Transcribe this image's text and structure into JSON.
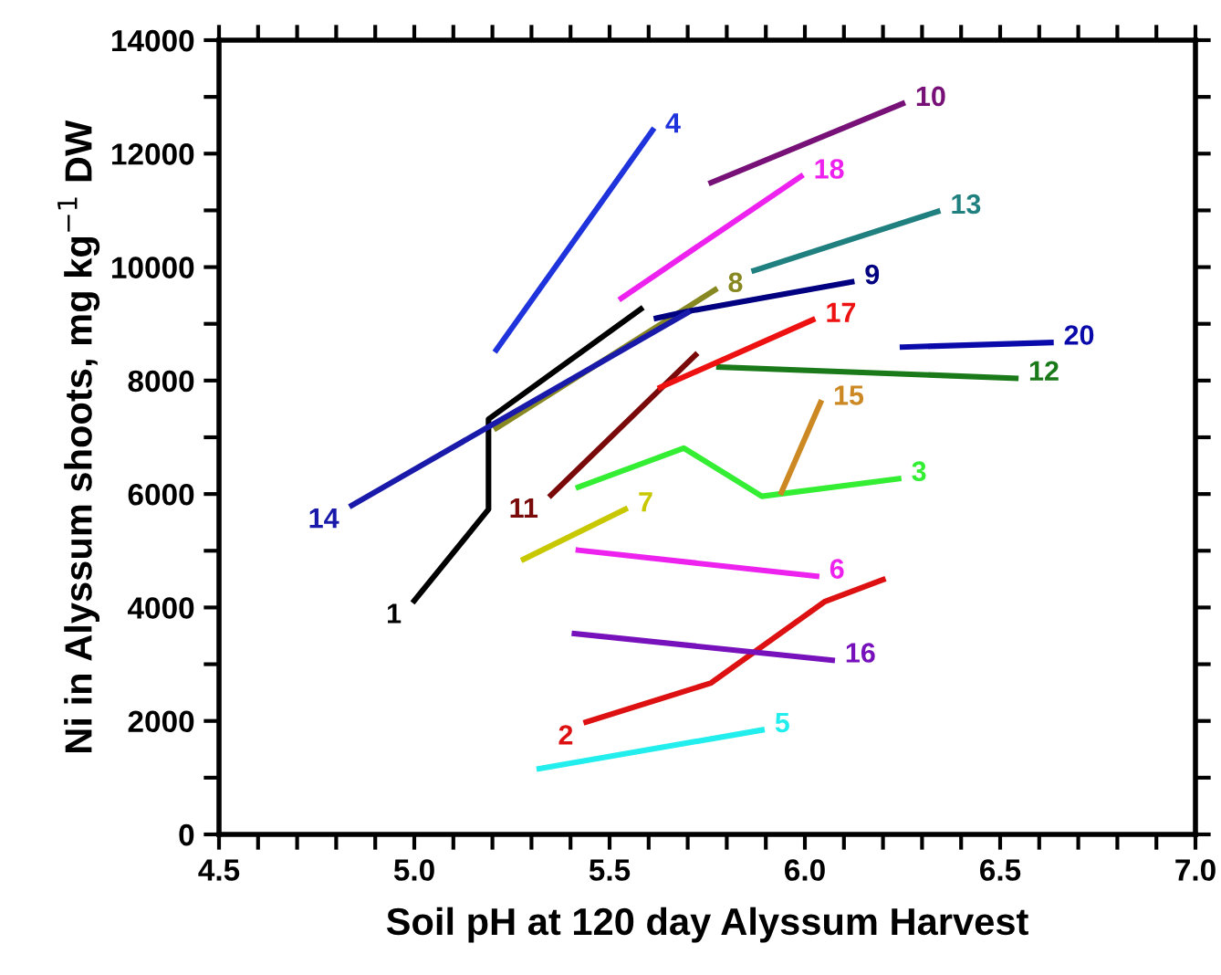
{
  "chart_data": {
    "type": "line",
    "xlabel": "Soil pH at 120 day Alyssum Harvest",
    "ylabel": "Ni in Alyssum shoots, mg kg$^{−1}$ DW",
    "xlim": [
      4.5,
      7.0
    ],
    "ylim": [
      0,
      14000
    ],
    "xticks": [
      4.5,
      {
        "value": 4.6,
        "label": null
      },
      {
        "value": 4.7,
        "label": null
      },
      {
        "value": 4.8,
        "label": null
      },
      {
        "value": 4.9,
        "label": null
      },
      "5.0",
      {
        "value": 5.1,
        "label": null
      },
      {
        "value": 5.2,
        "label": null
      },
      {
        "value": 5.3,
        "label": null
      },
      {
        "value": 5.4,
        "label": null
      },
      5.5,
      {
        "value": 5.6,
        "label": null
      },
      {
        "value": 5.7,
        "label": null
      },
      {
        "value": 5.8,
        "label": null
      },
      {
        "value": 5.9,
        "label": null
      },
      {
        "value": 6.0,
        "label": "6.0"
      },
      {
        "value": 6.1,
        "label": null
      },
      {
        "value": 6.2,
        "label": null
      },
      {
        "value": 6.3,
        "label": null
      },
      {
        "value": 6.4,
        "label": null
      },
      6.5,
      {
        "value": 6.6,
        "label": null
      },
      {
        "value": 6.7,
        "label": null
      },
      {
        "value": 6.8,
        "label": null
      },
      {
        "value": 6.9,
        "label": null
      },
      {
        "value": 7.0,
        "label": "7.0"
      }
    ],
    "yticks": [
      0,
      {
        "value": 1000,
        "label": null
      },
      2000,
      {
        "value": 3000,
        "label": null
      },
      4000,
      {
        "value": 5000,
        "label": null
      },
      6000,
      {
        "value": 7000,
        "label": null
      },
      8000,
      {
        "value": 9000,
        "label": null
      },
      10000,
      {
        "value": 11000,
        "label": null
      },
      12000,
      {
        "value": 13000,
        "label": null
      },
      14000
    ],
    "grid": false,
    "legend": false,
    "marker": "none",
    "line_style": "solid",
    "series": [
      {
        "name": "1",
        "color": "#000000",
        "x": [
          5.0,
          5.19,
          5.19,
          5.58
        ],
        "values": [
          4120,
          5730,
          7320,
          9260
        ]
      },
      {
        "name": "2",
        "color": "#dd1111",
        "x": [
          5.44,
          5.76,
          6.05,
          6.2
        ],
        "values": [
          1980,
          2670,
          4100,
          4490
        ]
      },
      {
        "name": "3",
        "color": "#33ee33",
        "x": [
          5.42,
          5.69,
          5.89,
          6.24
        ],
        "values": [
          6120,
          6810,
          5960,
          6270
        ]
      },
      {
        "name": "4",
        "color": "#1f33dd",
        "x": [
          5.21,
          5.61
        ],
        "values": [
          8540,
          12410
        ]
      },
      {
        "name": "5",
        "color": "#22eeee",
        "x": [
          5.32,
          5.89
        ],
        "values": [
          1160,
          1840
        ]
      },
      {
        "name": "6",
        "color": "#ee22ee",
        "x": [
          5.42,
          6.03
        ],
        "values": [
          5010,
          4550
        ]
      },
      {
        "name": "7",
        "color": "#c8c800",
        "x": [
          5.28,
          5.54
        ],
        "values": [
          4850,
          5730
        ]
      },
      {
        "name": "8",
        "color": "#888822",
        "x": [
          5.21,
          5.77
        ],
        "values": [
          7160,
          9600
        ]
      },
      {
        "name": "9",
        "color": "#000080",
        "x": [
          5.62,
          5.7,
          6.12
        ],
        "values": [
          9100,
          9220,
          9740
        ]
      },
      {
        "name": "10",
        "color": "#771177",
        "x": [
          5.76,
          6.25
        ],
        "values": [
          11490,
          12880
        ]
      },
      {
        "name": "11",
        "color": "#7a0a0a",
        "x": [
          5.35,
          5.72
        ],
        "values": [
          5980,
          8450
        ]
      },
      {
        "name": "12",
        "color": "#1a7a1a",
        "x": [
          5.78,
          6.54
        ],
        "values": [
          8240,
          8040
        ]
      },
      {
        "name": "13",
        "color": "#208080",
        "x": [
          5.87,
          6.34
        ],
        "values": [
          9940,
          10980
        ]
      },
      {
        "name": "14",
        "color": "#1a1aaa",
        "x": [
          4.84,
          5.7
        ],
        "values": [
          5800,
          9200
        ]
      },
      {
        "name": "15",
        "color": "#cc8822",
        "x": [
          5.94,
          6.04
        ],
        "values": [
          6030,
          7610
        ]
      },
      {
        "name": "16",
        "color": "#7711bb",
        "x": [
          5.41,
          6.07
        ],
        "values": [
          3540,
          3070
        ]
      },
      {
        "name": "17",
        "color": "#ee1111",
        "x": [
          5.63,
          6.02
        ],
        "values": [
          7880,
          9070
        ]
      },
      {
        "name": "18",
        "color": "#ee22ee",
        "x": [
          5.53,
          5.99
        ],
        "values": [
          9450,
          11600
        ]
      },
      {
        "name": "20",
        "color": "#0a0aaa",
        "x": [
          6.25,
          6.63
        ],
        "values": [
          8590,
          8670
        ]
      }
    ]
  }
}
